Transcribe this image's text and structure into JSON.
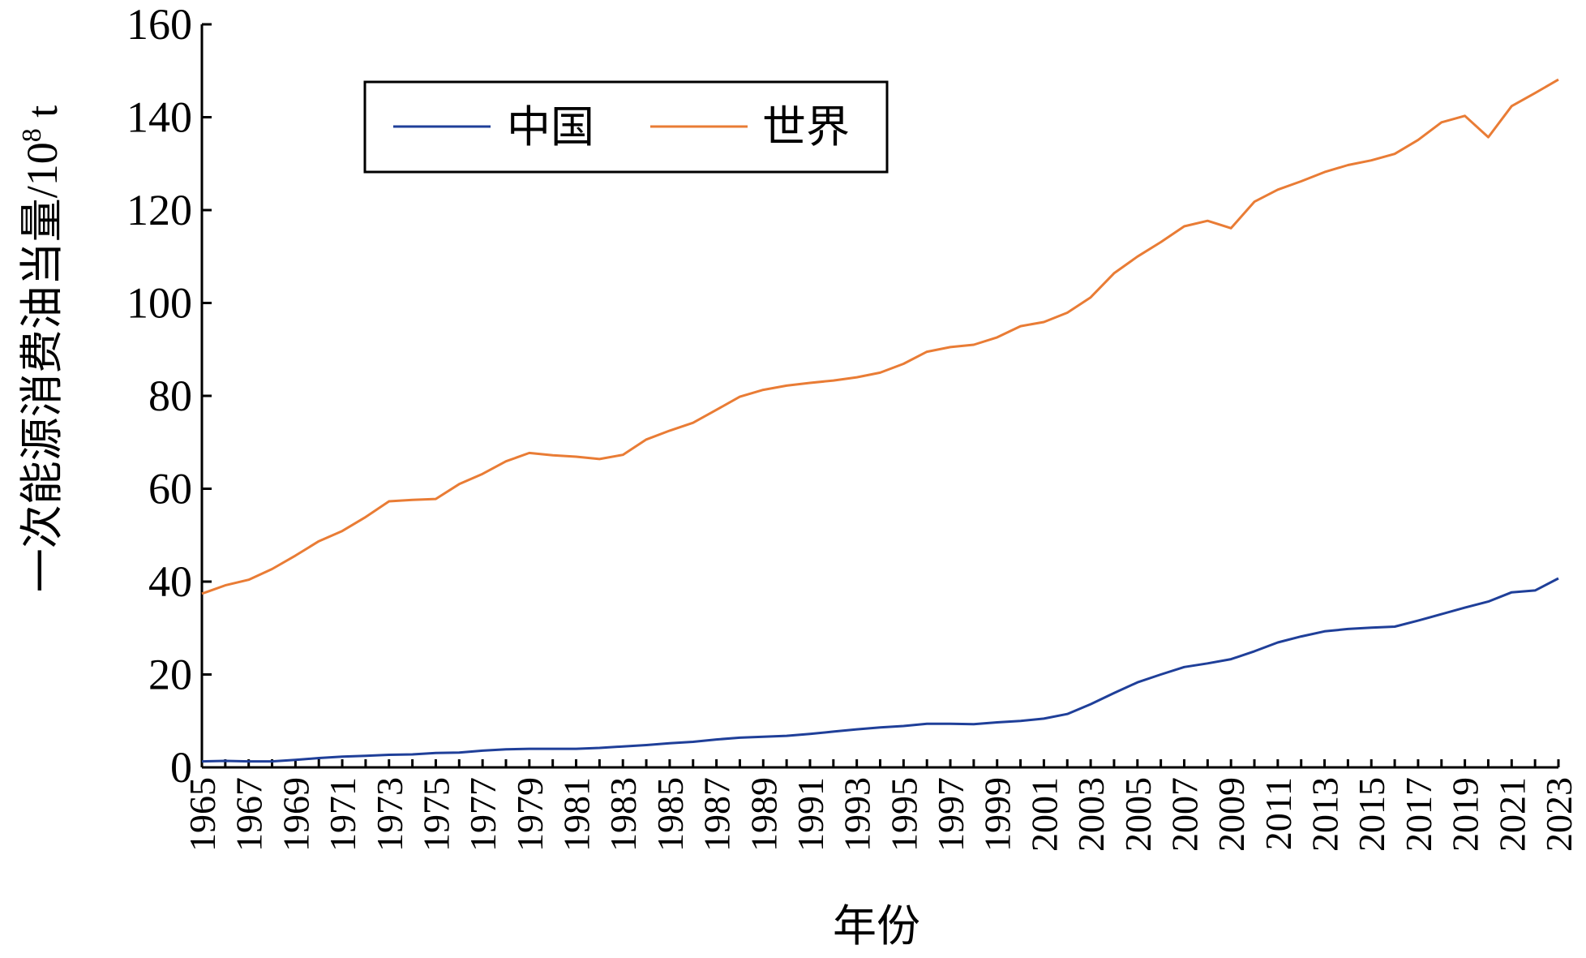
{
  "chart_data": {
    "type": "line",
    "title": "",
    "xlabel": "年份",
    "ylabel": "一次能源消费油当量/10",
    "ylabel_sup": "8",
    "ylabel_unit": " t",
    "ylim": [
      0,
      160
    ],
    "yticks": [
      0,
      20,
      40,
      60,
      80,
      100,
      120,
      140,
      160
    ],
    "grid": false,
    "legend_position": "top-left",
    "x": [
      1965,
      1966,
      1967,
      1968,
      1969,
      1970,
      1971,
      1972,
      1973,
      1974,
      1975,
      1976,
      1977,
      1978,
      1979,
      1980,
      1981,
      1982,
      1983,
      1984,
      1985,
      1986,
      1987,
      1988,
      1989,
      1990,
      1991,
      1992,
      1993,
      1994,
      1995,
      1996,
      1997,
      1998,
      1999,
      2000,
      2001,
      2002,
      2003,
      2004,
      2005,
      2006,
      2007,
      2008,
      2009,
      2010,
      2011,
      2012,
      2013,
      2014,
      2015,
      2016,
      2017,
      2018,
      2019,
      2020,
      2021,
      2022,
      2023
    ],
    "xticks": [
      "1965",
      "1967",
      "1969",
      "1971",
      "1973",
      "1975",
      "1977",
      "1979",
      "1981",
      "1983",
      "1985",
      "1987",
      "1989",
      "1991",
      "1993",
      "1995",
      "1997",
      "1999",
      "2001",
      "2003",
      "2005",
      "2007",
      "2009",
      "2011",
      "2013",
      "2015",
      "2017",
      "2019",
      "2021",
      "2023"
    ],
    "series": [
      {
        "name": "中国",
        "color": "#1f3f99",
        "values": [
          1.3,
          1.4,
          1.3,
          1.3,
          1.6,
          2.0,
          2.3,
          2.5,
          2.7,
          2.8,
          3.1,
          3.2,
          3.6,
          3.9,
          4.0,
          4.0,
          4.0,
          4.2,
          4.5,
          4.8,
          5.2,
          5.5,
          6.0,
          6.4,
          6.6,
          6.8,
          7.2,
          7.7,
          8.2,
          8.6,
          8.9,
          9.4,
          9.4,
          9.3,
          9.7,
          10.0,
          10.5,
          11.5,
          13.6,
          16.0,
          18.3,
          20.0,
          21.6,
          22.4,
          23.3,
          25.0,
          26.9,
          28.2,
          29.3,
          29.8,
          30.1,
          30.3,
          31.6,
          33.0,
          34.4,
          35.7,
          37.7,
          38.1,
          40.7
        ]
      },
      {
        "name": "世界",
        "color": "#e97c35",
        "values": [
          37.4,
          39.2,
          40.4,
          42.7,
          45.6,
          48.7,
          50.9,
          53.9,
          57.3,
          57.6,
          57.8,
          61.0,
          63.2,
          65.9,
          67.7,
          67.2,
          66.9,
          66.4,
          67.3,
          70.6,
          72.5,
          74.2,
          77.0,
          79.8,
          81.3,
          82.2,
          82.8,
          83.3,
          84.0,
          85.0,
          86.9,
          89.5,
          90.5,
          91.0,
          92.6,
          95.0,
          95.9,
          97.9,
          101.2,
          106.4,
          110.0,
          113.1,
          116.5,
          117.7,
          116.1,
          121.8,
          124.4,
          126.2,
          128.2,
          129.7,
          130.7,
          132.1,
          135.1,
          138.9,
          140.3,
          135.7,
          142.4,
          145.2,
          148.1
        ]
      }
    ]
  }
}
